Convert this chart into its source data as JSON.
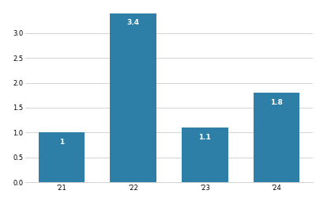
{
  "categories": [
    "'21",
    "'22",
    "'23",
    "'24"
  ],
  "values": [
    1.0,
    3.4,
    1.1,
    1.8
  ],
  "bar_color": "#2e7fa8",
  "bar_labels": [
    "1",
    "3.4",
    "1.1",
    "1.8"
  ],
  "label_color": "#ffffff",
  "label_fontsize": 6.5,
  "label_fontweight": "bold",
  "ylim": [
    0,
    3.55
  ],
  "yticks": [
    0,
    0.5,
    1,
    1.5,
    2,
    2.5,
    3
  ],
  "tick_fontsize": 6,
  "grid_color": "#cccccc",
  "background_color": "#ffffff",
  "bar_width": 0.65
}
